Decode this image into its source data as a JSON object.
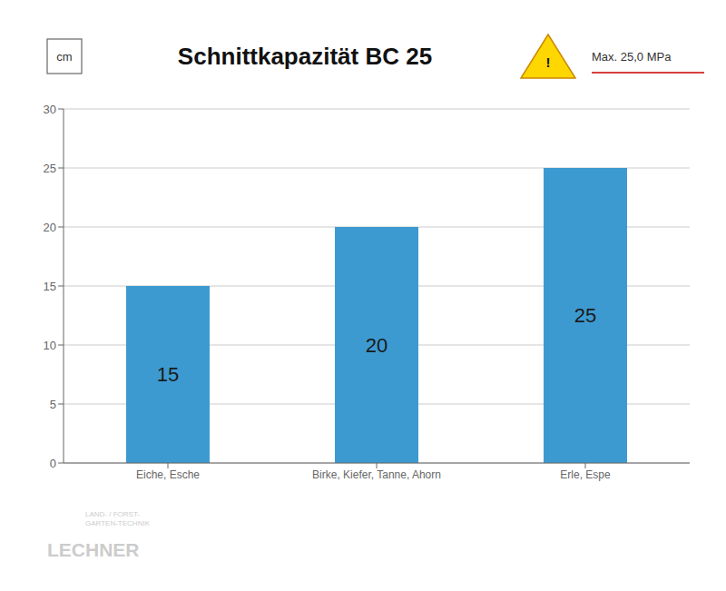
{
  "chart_data": {
    "type": "bar",
    "title": "Schnittkapazität BC 25",
    "ylabel": "cm",
    "categories": [
      "Eiche, Esche",
      "Birke, Kiefer, Tanne, Ahorn",
      "Erle, Espe"
    ],
    "values": [
      15,
      20,
      25
    ],
    "color": "#3d9ad1",
    "ylim": [
      0,
      30
    ],
    "yticks": [
      0,
      5,
      10,
      15,
      20,
      25,
      30
    ],
    "grid": true,
    "data_labels": true,
    "annotations": [
      "!",
      "Max. 25,0 MPa",
      "LECHNER",
      "LAND- / FORST-\nGARTEN-TECHNIK"
    ]
  }
}
